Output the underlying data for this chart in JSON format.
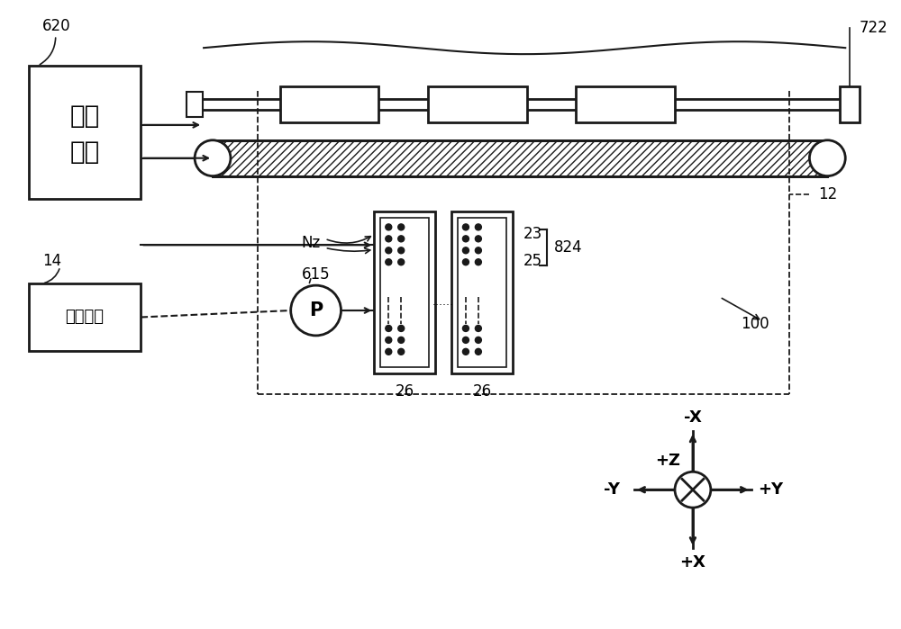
{
  "bg_color": "#ffffff",
  "line_color": "#1a1a1a",
  "label_620": "620",
  "label_722": "722",
  "label_14": "14",
  "label_615": "615",
  "label_Nz": "Nz",
  "label_23": "23",
  "label_25": "25",
  "label_824": "824",
  "label_26a": "26",
  "label_26b": "26",
  "label_12": "12",
  "label_100": "100",
  "label_control_1": "控制",
  "label_control_2": "单元",
  "label_liquid": "液体容器",
  "label_minusX": "-X",
  "label_plusX": "+X",
  "label_minusY": "-Y",
  "label_plusY": "+Y",
  "label_plusZ": "+Z",
  "figsize": [
    10.0,
    6.99
  ]
}
